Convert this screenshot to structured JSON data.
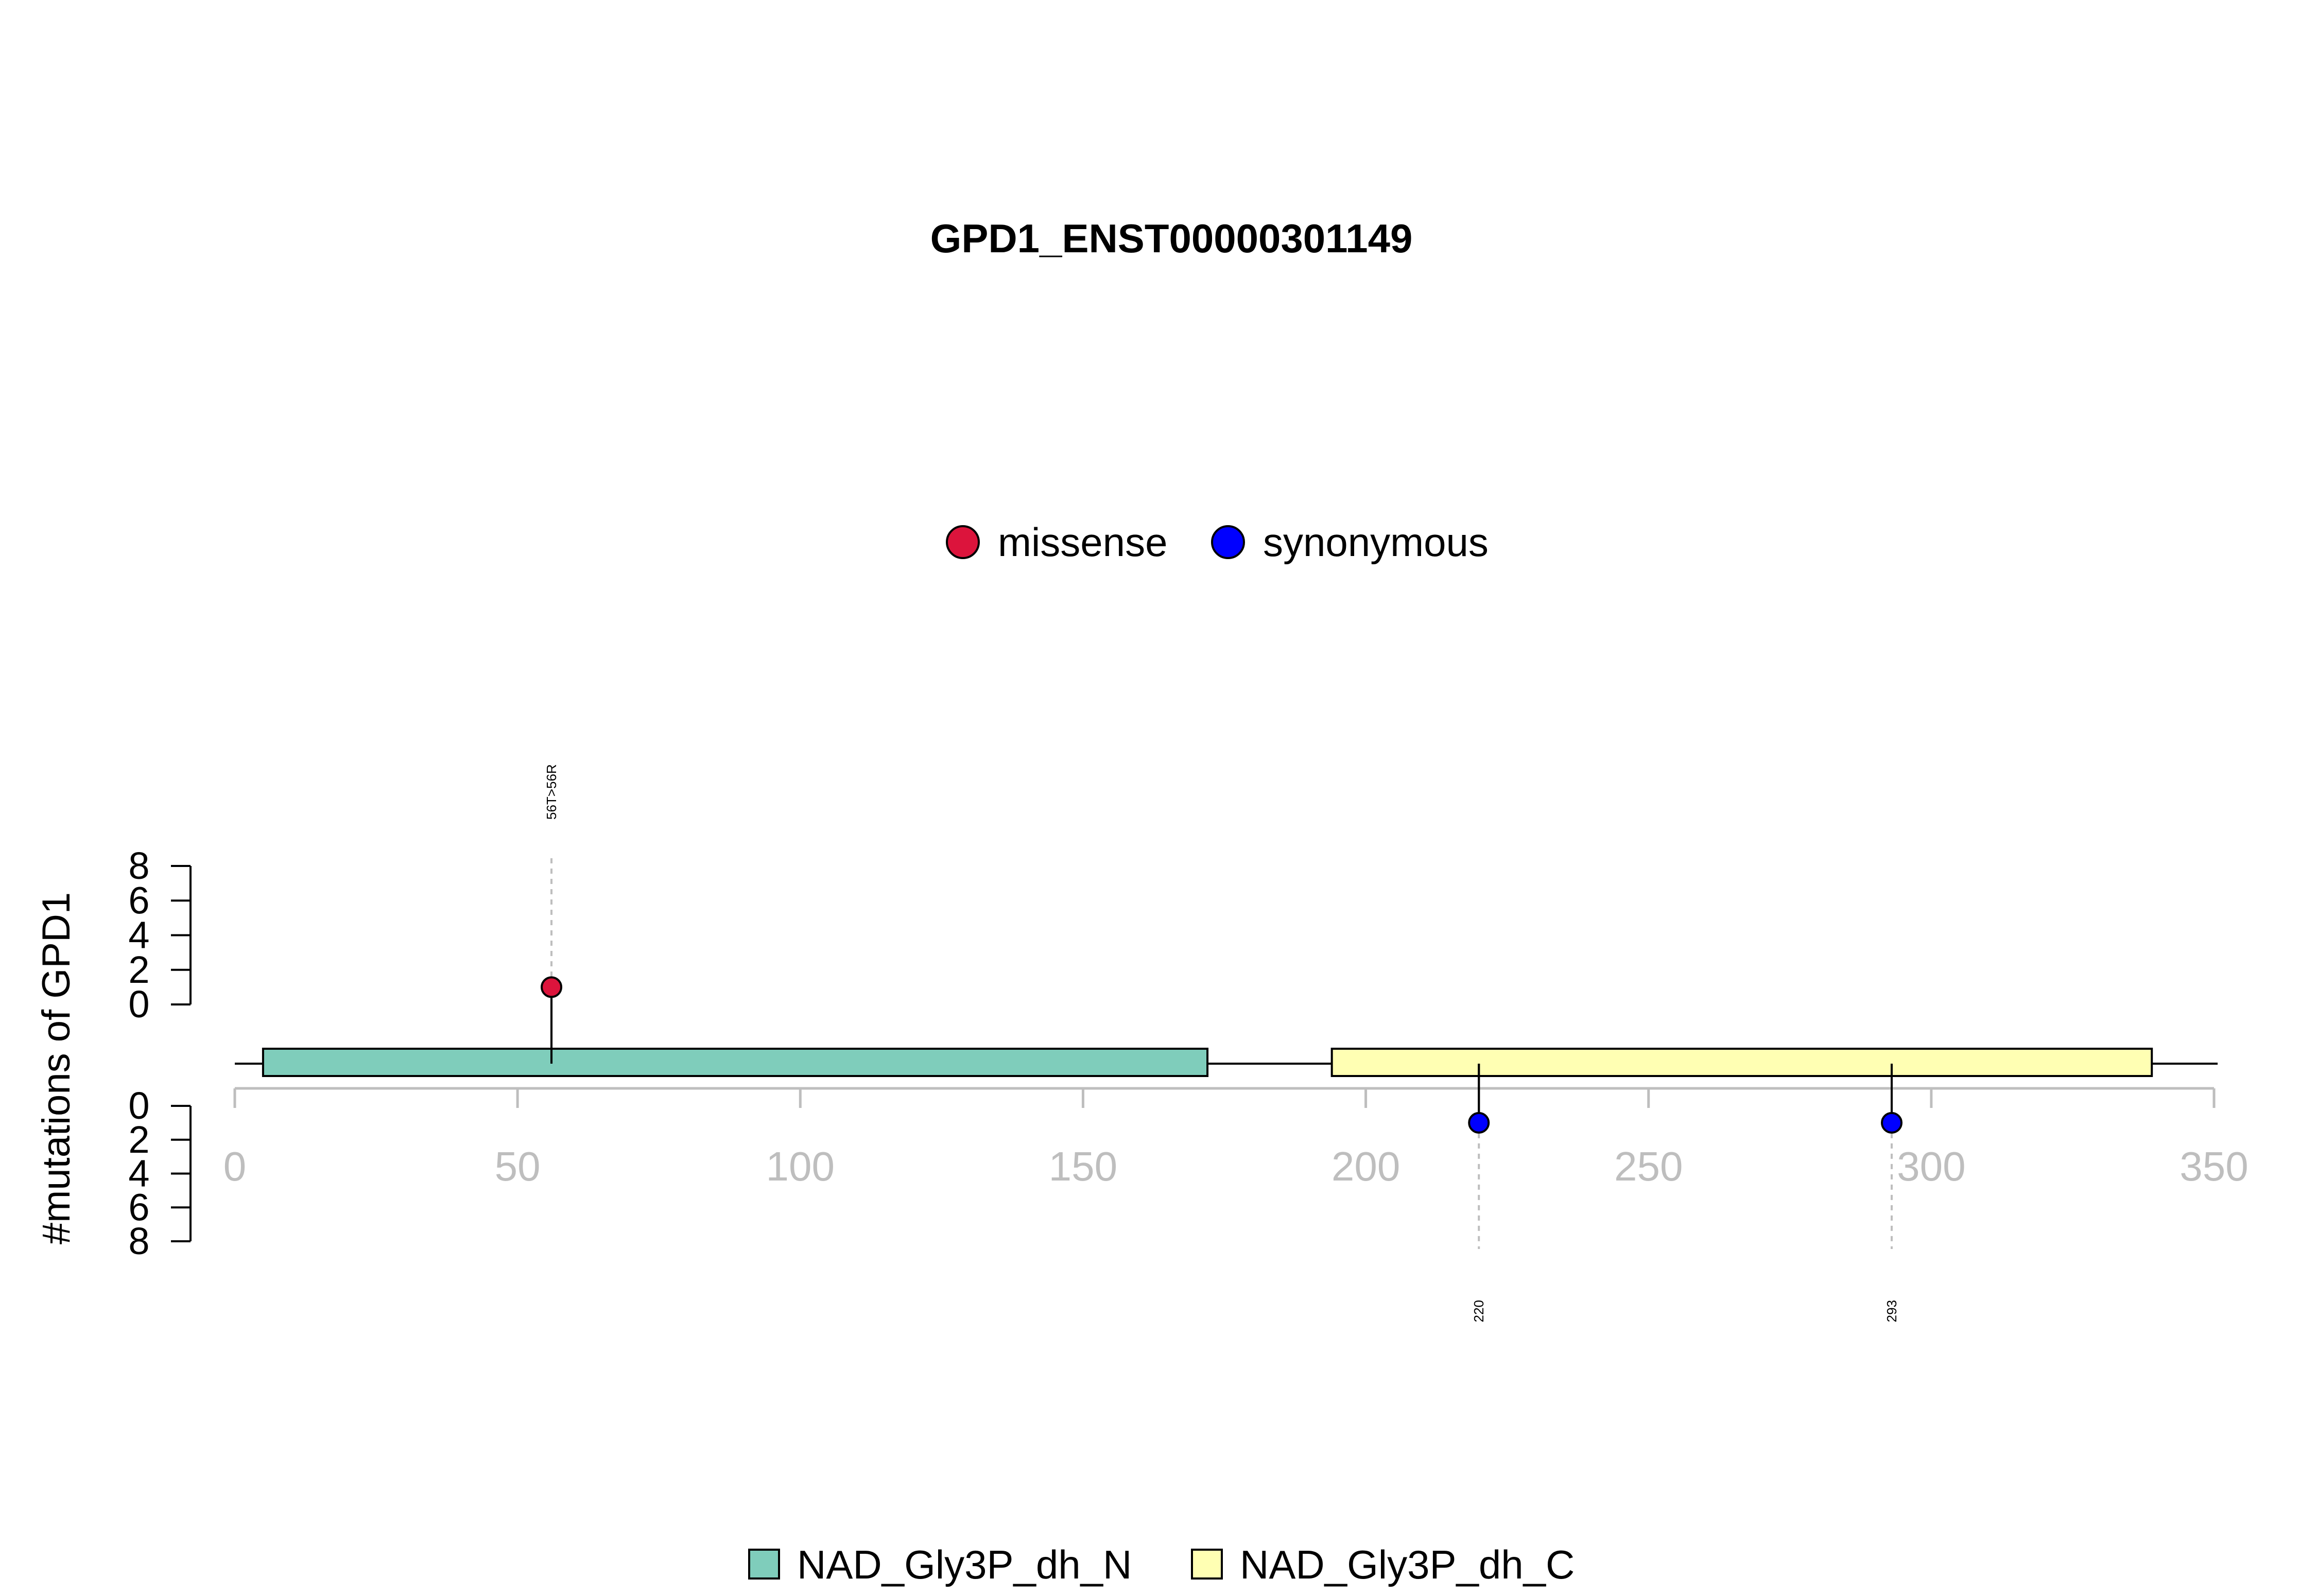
{
  "chart_data": {
    "type": "lollipop",
    "title": "GPD1_ENST00000301149",
    "ylabel": "#mutations of GPD1",
    "xlim": [
      0,
      350
    ],
    "x_ticks": [
      0,
      50,
      100,
      150,
      200,
      250,
      300,
      350
    ],
    "y_ticks_upper": [
      0,
      2,
      4,
      6,
      8
    ],
    "y_ticks_lower": [
      0,
      2,
      4,
      6,
      8
    ],
    "ylim": [
      0,
      8
    ],
    "mutation_legend": [
      {
        "name": "missense",
        "color": "#DC143C"
      },
      {
        "name": "synonymous",
        "color": "#0000FF"
      }
    ],
    "domain_legend": [
      {
        "name": "NAD_Gly3P_dh_N",
        "color": "#7FCDBB"
      },
      {
        "name": "NAD_Gly3P_dh_C",
        "color": "#FFFFB3"
      }
    ],
    "domains": [
      {
        "name": "NAD_Gly3P_dh_N",
        "start": 5,
        "end": 172,
        "color": "#7FCDBB"
      },
      {
        "name": "NAD_Gly3P_dh_C",
        "start": 194,
        "end": 339,
        "color": "#FFFFB3"
      }
    ],
    "protein_length": 349,
    "mutations": [
      {
        "position": 56,
        "count": 1,
        "type": "missense",
        "side": "up",
        "label": "56T>56R",
        "color": "#DC143C"
      },
      {
        "position": 220,
        "count": 1,
        "type": "synonymous",
        "side": "down",
        "label": "220",
        "color": "#0000FF"
      },
      {
        "position": 293,
        "count": 1,
        "type": "synonymous",
        "side": "down",
        "label": "293",
        "color": "#0000FF"
      }
    ]
  }
}
